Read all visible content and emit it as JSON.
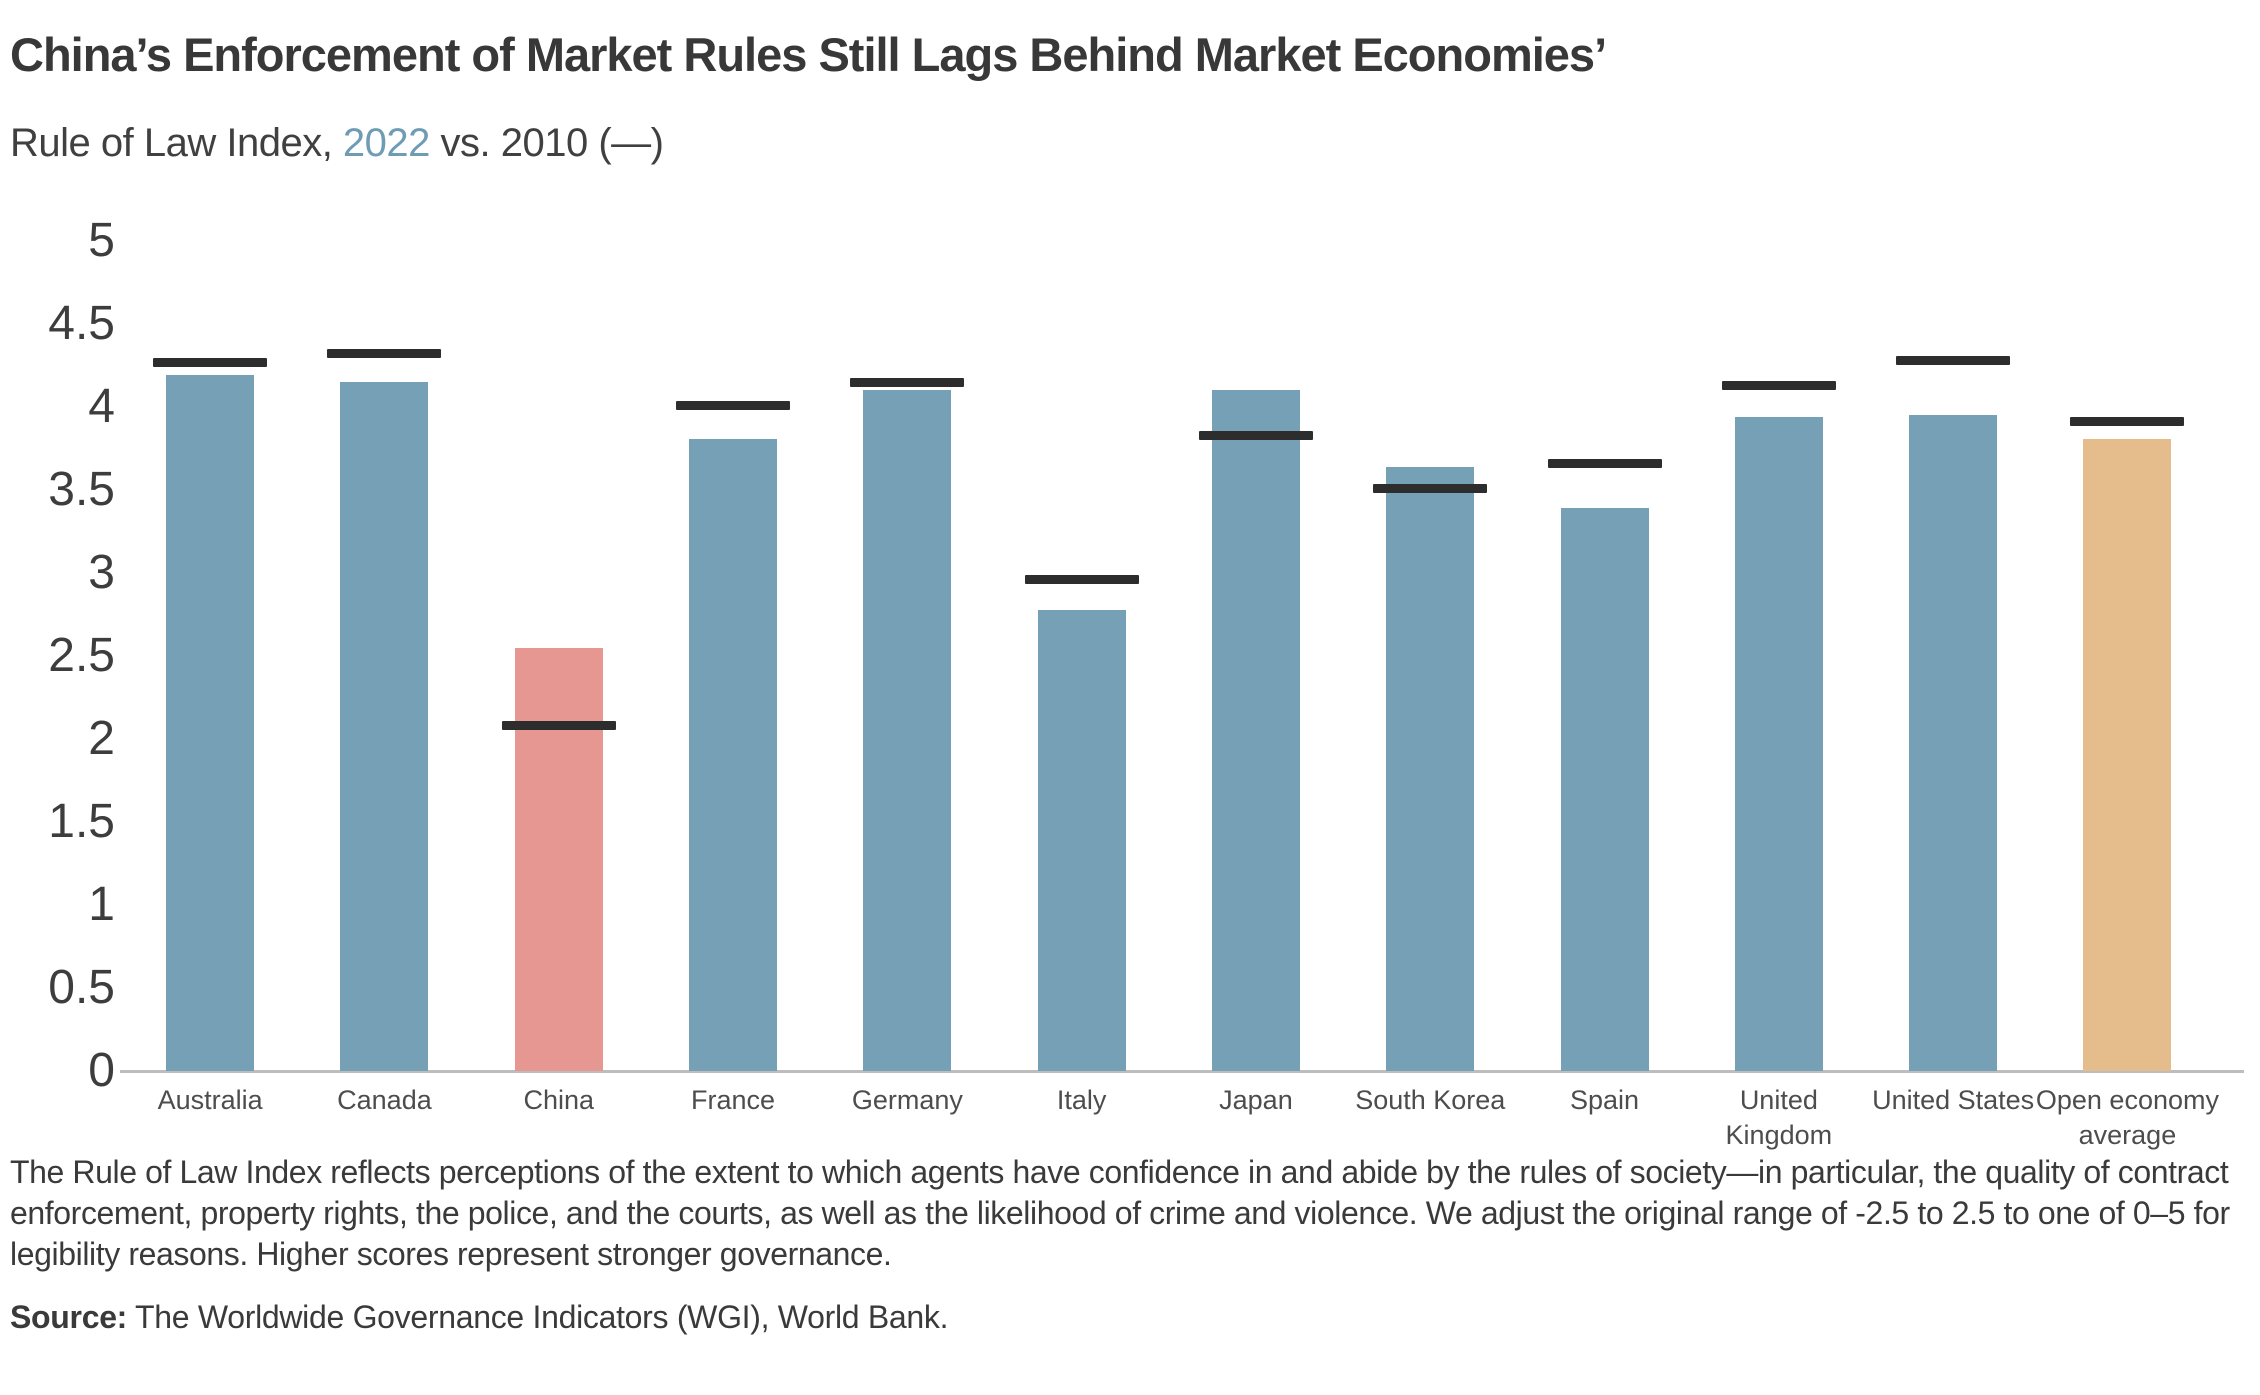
{
  "header": {
    "title": "China’s Enforcement of Market Rules Still Lags Behind Market Economies’",
    "subtitle_prefix": "Rule of Law Index, ",
    "subtitle_year": "2022",
    "subtitle_suffix": " vs. 2010 (—)"
  },
  "chart_data": {
    "type": "bar",
    "title": "China’s Enforcement of Market Rules Still Lags Behind Market Economies’",
    "subtitle": "Rule of Law Index, 2022 vs. 2010 (—)",
    "xlabel": "",
    "ylabel": "",
    "ylim": [
      0,
      5
    ],
    "ytick_labels": [
      "5",
      "4.5",
      "4",
      "3.5",
      "3",
      "2.5",
      "2",
      "1.5",
      "1",
      "0.5",
      "0"
    ],
    "grid": "off",
    "legend": "none",
    "categories": [
      "Australia",
      "Canada",
      "China",
      "France",
      "Germany",
      "Italy",
      "Japan",
      "South Korea",
      "Spain",
      "United Kingdom",
      "United States",
      "Open economy average"
    ],
    "series": [
      {
        "name": "2022",
        "style": "bar",
        "values": [
          4.19,
          4.15,
          2.55,
          3.81,
          4.1,
          2.78,
          4.1,
          3.64,
          3.39,
          3.94,
          3.95,
          3.81
        ]
      },
      {
        "name": "2010",
        "style": "dash-marker",
        "values": [
          4.27,
          4.32,
          2.08,
          4.01,
          4.15,
          2.96,
          3.83,
          3.51,
          3.66,
          4.13,
          4.28,
          3.91
        ]
      }
    ],
    "bar_colors": [
      "#76a0b5",
      "#76a0b5",
      "#e69792",
      "#76a0b5",
      "#76a0b5",
      "#76a0b5",
      "#76a0b5",
      "#76a0b5",
      "#76a0b5",
      "#76a0b5",
      "#76a0b5",
      "#e5bd8c"
    ],
    "colors": {
      "bar_default": "#76a0b5",
      "bar_china_highlight": "#e69792",
      "bar_open_economy_average": "#e5bd8c",
      "marker_2010": "#2d2d2d",
      "accent_2022": "#6f9cb5",
      "axis_line": "#bdbdbd"
    }
  },
  "footnote": {
    "text": "The Rule of Law Index reflects perceptions of the extent to which agents have confidence in and abide by the rules of society—in particular, the quality of contract enforcement, property rights, the police, and the courts, as well as the likelihood of crime and violence. We adjust the original range of -2.5 to 2.5 to one of 0–5 for legibility reasons. Higher scores represent stronger governance."
  },
  "source": {
    "label": "Source:",
    "text": " The Worldwide Governance Indicators (WGI), World Bank."
  }
}
